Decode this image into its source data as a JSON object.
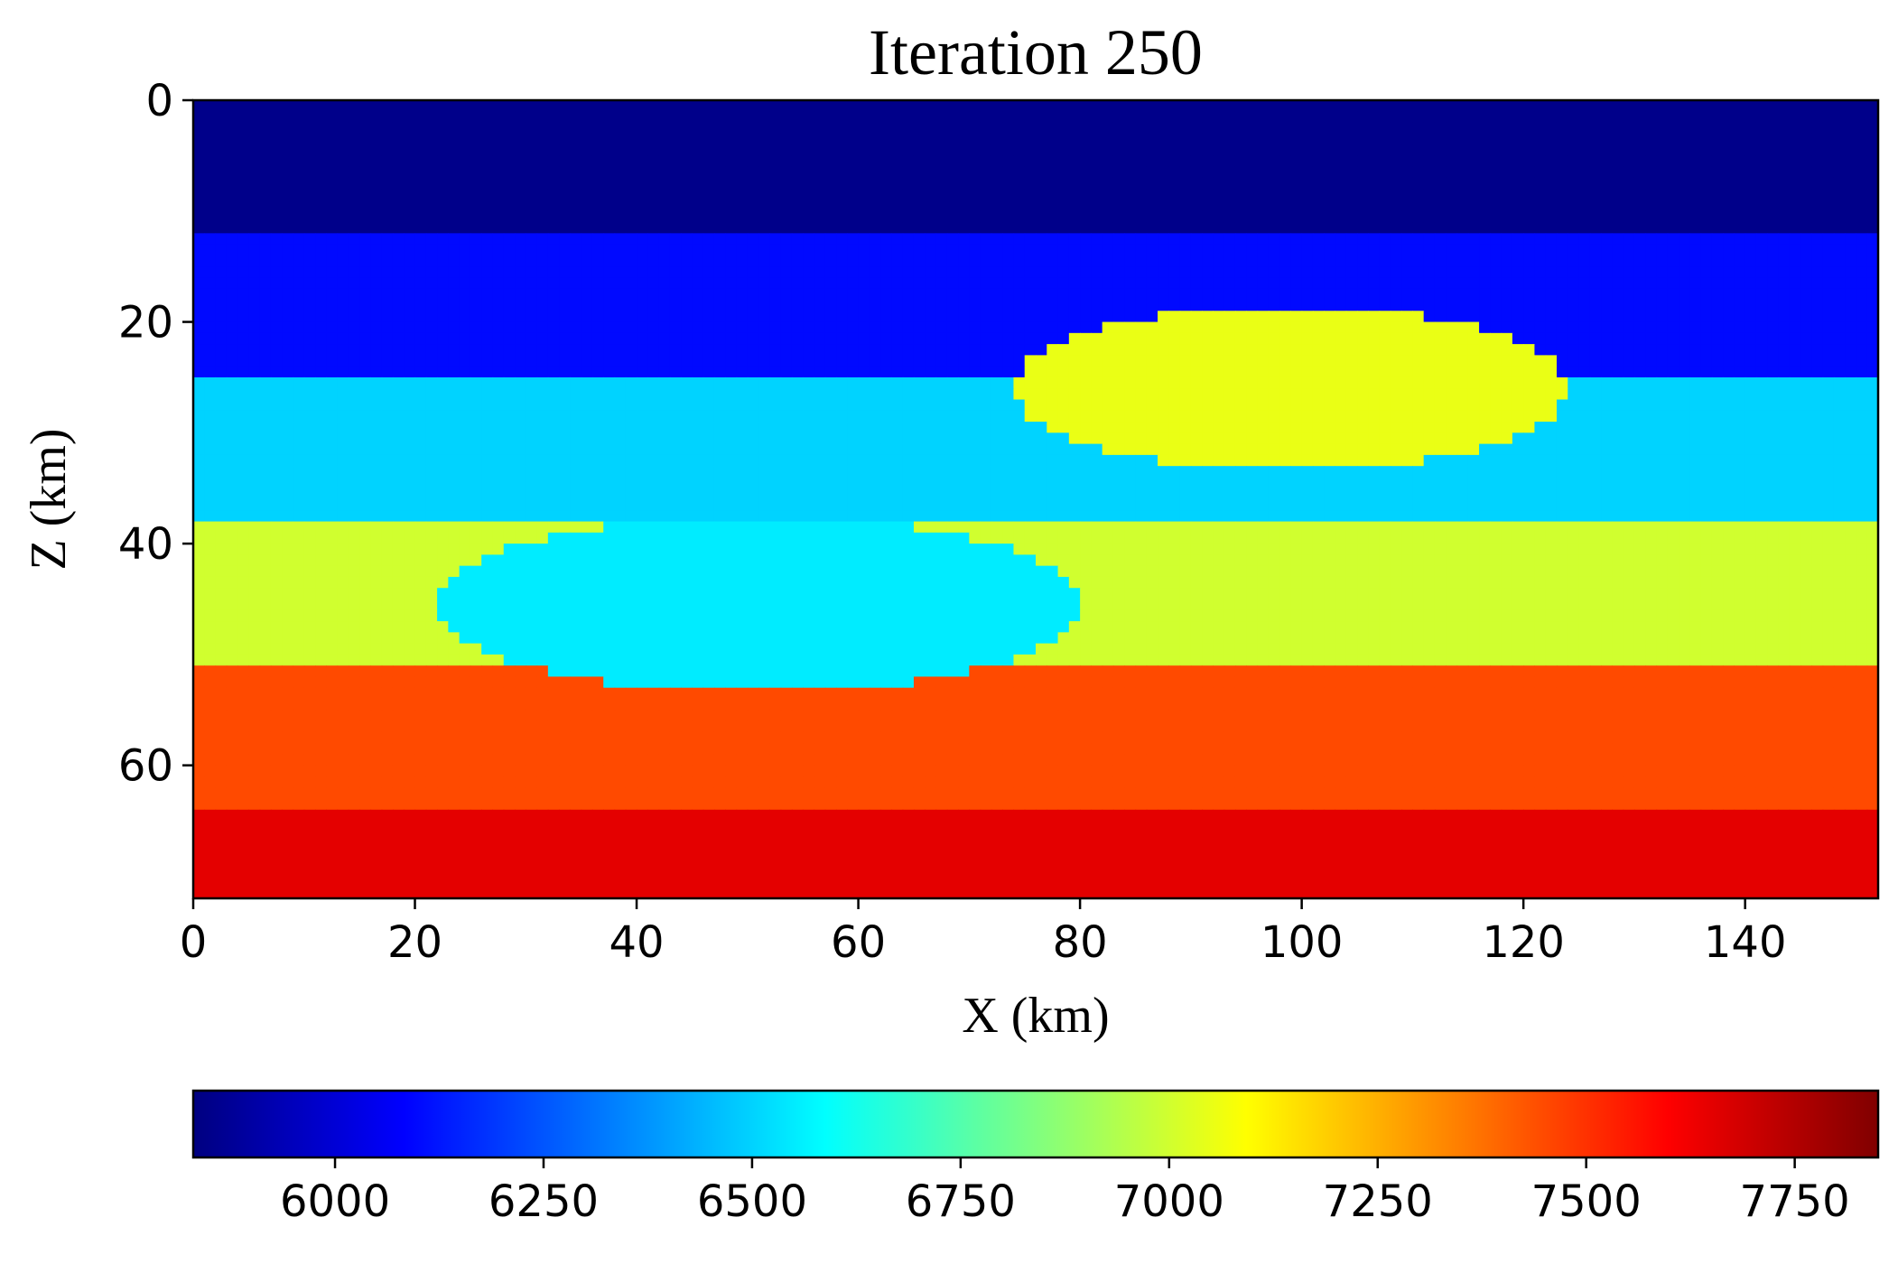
{
  "chart_data": {
    "type": "heatmap",
    "title": "Iteration 250",
    "xlabel": "X (km)",
    "ylabel": "Z (km)",
    "xlim": [
      0,
      152
    ],
    "ylim": [
      72,
      0
    ],
    "xticks": [
      "0",
      "20",
      "40",
      "60",
      "80",
      "100",
      "120",
      "140"
    ],
    "xtick_values": [
      0,
      20,
      40,
      60,
      80,
      100,
      120,
      140
    ],
    "yticks": [
      "0",
      "20",
      "40",
      "60"
    ],
    "ytick_values": [
      0,
      20,
      40,
      60
    ],
    "colormap": "jet",
    "colorbar": {
      "orientation": "horizontal",
      "placement": "bottom",
      "range": [
        5830,
        7850
      ],
      "ticks": [
        "6000",
        "6250",
        "6500",
        "6750",
        "7000",
        "7250",
        "7500",
        "7750"
      ],
      "tick_values": [
        6000,
        6250,
        6500,
        6750,
        7000,
        7250,
        7500,
        7750
      ]
    },
    "layers": [
      {
        "z_top": 0,
        "z_bottom": 12.5,
        "value": 5850
      },
      {
        "z_top": 12.5,
        "z_bottom": 25.5,
        "value": 6100
      },
      {
        "z_top": 25.5,
        "z_bottom": 38.5,
        "value": 6500
      },
      {
        "z_top": 38.5,
        "z_bottom": 51.5,
        "value": 7000
      },
      {
        "z_top": 51.5,
        "z_bottom": 64.5,
        "value": 7450
      },
      {
        "z_top": 64.5,
        "z_bottom": 72,
        "value": 7650
      }
    ],
    "anomalies": [
      {
        "shape": "ellipse",
        "x_center": 99,
        "z_center": 26,
        "x_radius": 25,
        "z_radius": 7.5,
        "value": 7050
      },
      {
        "shape": "ellipse",
        "x_center": 51,
        "z_center": 45.5,
        "x_radius": 29,
        "z_radius": 8,
        "value": 6550
      }
    ],
    "grid": false
  }
}
